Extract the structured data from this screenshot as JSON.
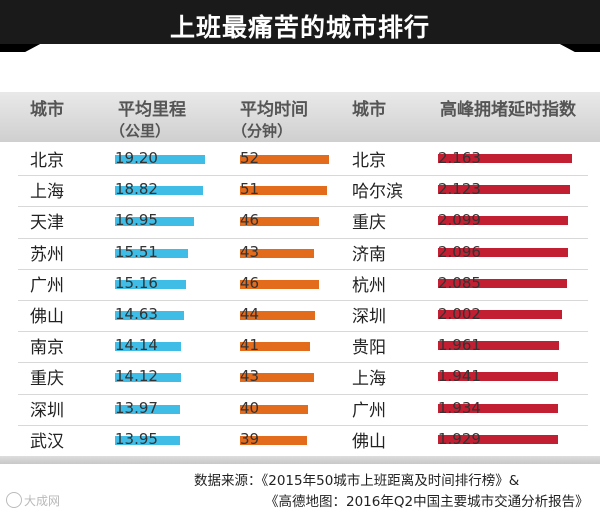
{
  "page_title": "上班最痛苦的城市排行",
  "chart_data": {
    "type": "table",
    "title": "上班最痛苦的城市排行",
    "headers": {
      "city_left": "城市",
      "distance": "平均里程",
      "distance_unit": "（公里）",
      "time": "平均时间",
      "time_unit": "（分钟）",
      "city_right": "城市",
      "congestion": "高峰拥堵延时指数"
    },
    "colors": {
      "distance": "#3fbde6",
      "time": "#e36b1c",
      "congestion": "#c22032",
      "banner": "#1a1a1a"
    },
    "rows": [
      {
        "city": "北京",
        "distance": 19.2,
        "distance_label": "19.20",
        "time": 52,
        "time_label": "52",
        "congestion_city": "北京",
        "congestion": 2.163,
        "congestion_label": "2.163"
      },
      {
        "city": "上海",
        "distance": 18.82,
        "distance_label": "18.82",
        "time": 51,
        "time_label": "51",
        "congestion_city": "哈尔滨",
        "congestion": 2.123,
        "congestion_label": "2.123"
      },
      {
        "city": "天津",
        "distance": 16.95,
        "distance_label": "16.95",
        "time": 46,
        "time_label": "46",
        "congestion_city": "重庆",
        "congestion": 2.099,
        "congestion_label": "2.099"
      },
      {
        "city": "苏州",
        "distance": 15.51,
        "distance_label": "15.51",
        "time": 43,
        "time_label": "43",
        "congestion_city": "济南",
        "congestion": 2.096,
        "congestion_label": "2.096"
      },
      {
        "city": "广州",
        "distance": 15.16,
        "distance_label": "15.16",
        "time": 46,
        "time_label": "46",
        "congestion_city": "杭州",
        "congestion": 2.085,
        "congestion_label": "2.085"
      },
      {
        "city": "佛山",
        "distance": 14.63,
        "distance_label": "14.63",
        "time": 44,
        "time_label": "44",
        "congestion_city": "深圳",
        "congestion": 2.002,
        "congestion_label": "2.002"
      },
      {
        "city": "南京",
        "distance": 14.14,
        "distance_label": "14.14",
        "time": 41,
        "time_label": "41",
        "congestion_city": "贵阳",
        "congestion": 1.961,
        "congestion_label": "1.961"
      },
      {
        "city": "重庆",
        "distance": 14.12,
        "distance_label": "14.12",
        "time": 43,
        "time_label": "43",
        "congestion_city": "上海",
        "congestion": 1.941,
        "congestion_label": "1.941"
      },
      {
        "city": "深圳",
        "distance": 13.97,
        "distance_label": "13.97",
        "time": 40,
        "time_label": "40",
        "congestion_city": "广州",
        "congestion": 1.934,
        "congestion_label": "1.934"
      },
      {
        "city": "武汉",
        "distance": 13.95,
        "distance_label": "13.95",
        "time": 39,
        "time_label": "39",
        "congestion_city": "佛山",
        "congestion": 1.929,
        "congestion_label": "1.929"
      }
    ]
  },
  "source": {
    "line1": "数据来源：《2015年50城市上班距离及时间排行榜》&",
    "line2": "《高德地图：2016年Q2中国主要城市交通分析报告》"
  },
  "watermark": "大成网"
}
